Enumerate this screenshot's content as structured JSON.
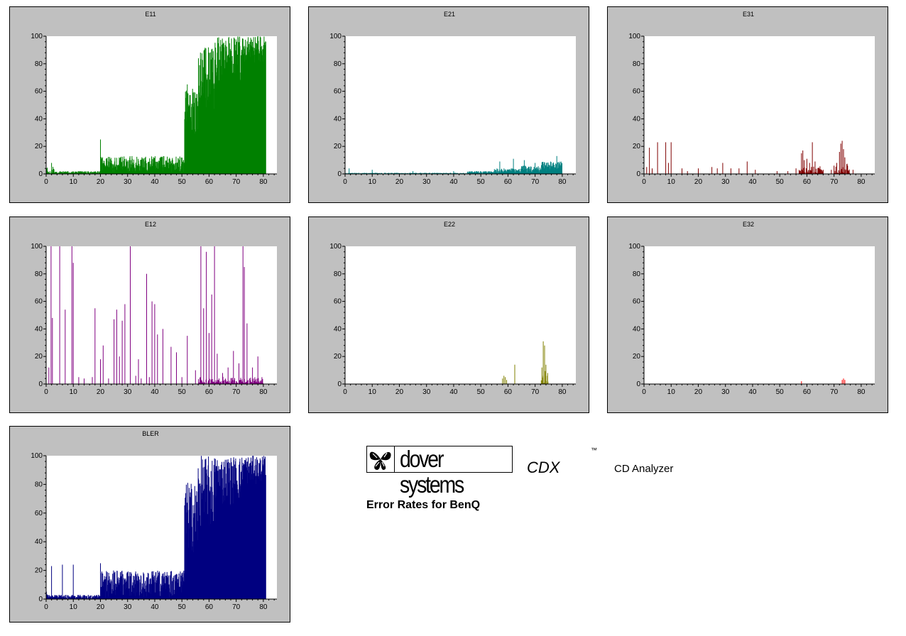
{
  "charts": [
    {
      "id": "e11",
      "title": "E11",
      "color": "#008000",
      "kind": "dense",
      "segments": [
        [
          0,
          0.5,
          0,
          5
        ],
        [
          0.5,
          2.3,
          0,
          2
        ],
        [
          2.3,
          3,
          0,
          6
        ],
        [
          3,
          20,
          0,
          2
        ],
        [
          20,
          51,
          1,
          13
        ],
        [
          51,
          56,
          28,
          62
        ],
        [
          56,
          62,
          45,
          92
        ],
        [
          62,
          72,
          65,
          100
        ],
        [
          72,
          81,
          80,
          100
        ]
      ],
      "spikes": [
        [
          2,
          8
        ],
        [
          20,
          25
        ],
        [
          52,
          65
        ],
        [
          58,
          12
        ],
        [
          60,
          88
        ],
        [
          62,
          15
        ],
        [
          66,
          26
        ],
        [
          68,
          40
        ],
        [
          70,
          15
        ],
        [
          72,
          20
        ],
        [
          78,
          100
        ],
        [
          80,
          78
        ]
      ]
    },
    {
      "id": "e21",
      "title": "E21",
      "color": "#008080",
      "kind": "dense",
      "segments": [
        [
          0,
          45,
          0,
          0.8
        ],
        [
          45,
          55,
          0,
          2
        ],
        [
          55,
          65,
          0,
          4
        ],
        [
          65,
          72,
          1,
          6
        ],
        [
          72,
          80,
          2,
          9
        ]
      ],
      "spikes": [
        [
          1.5,
          4
        ],
        [
          10,
          3
        ],
        [
          25,
          2
        ],
        [
          40,
          2
        ],
        [
          57,
          9
        ],
        [
          62,
          11
        ],
        [
          66,
          10
        ],
        [
          70,
          8
        ],
        [
          78,
          13
        ]
      ]
    },
    {
      "id": "e31",
      "title": "E31",
      "color": "#800000",
      "kind": "sparse",
      "spikes": [
        [
          1,
          5
        ],
        [
          2,
          19
        ],
        [
          3,
          4
        ],
        [
          5,
          23
        ],
        [
          8,
          23
        ],
        [
          9,
          8
        ],
        [
          10,
          23
        ],
        [
          14,
          4
        ],
        [
          16,
          2
        ],
        [
          20,
          4
        ],
        [
          25,
          5
        ],
        [
          27,
          4
        ],
        [
          29,
          8
        ],
        [
          32,
          4
        ],
        [
          35,
          4
        ],
        [
          38,
          9
        ],
        [
          41,
          3
        ],
        [
          49,
          2
        ],
        [
          53,
          2
        ],
        [
          56,
          4
        ],
        [
          58,
          15
        ],
        [
          58.5,
          17
        ],
        [
          59,
          10
        ],
        [
          60,
          11
        ],
        [
          61,
          8
        ],
        [
          62,
          23
        ],
        [
          63,
          9
        ],
        [
          64,
          4
        ],
        [
          66,
          3
        ],
        [
          69,
          3
        ],
        [
          70,
          6
        ],
        [
          71,
          8
        ],
        [
          72,
          16
        ],
        [
          72.5,
          22
        ],
        [
          73,
          24
        ],
        [
          73.5,
          18
        ],
        [
          74,
          12
        ],
        [
          75,
          6
        ],
        [
          77,
          3
        ]
      ],
      "base": [
        [
          57,
          66,
          0,
          7
        ],
        [
          70,
          76,
          0,
          9
        ]
      ]
    },
    {
      "id": "e12",
      "title": "E12",
      "color": "#800080",
      "kind": "sparse",
      "spikes": [
        [
          1,
          12
        ],
        [
          1.8,
          100
        ],
        [
          2.3,
          48
        ],
        [
          5,
          100
        ],
        [
          7,
          54
        ],
        [
          9.5,
          100
        ],
        [
          10,
          88
        ],
        [
          12,
          5
        ],
        [
          14,
          4
        ],
        [
          17,
          5
        ],
        [
          18,
          55
        ],
        [
          20,
          18
        ],
        [
          21,
          28
        ],
        [
          23,
          4
        ],
        [
          25,
          47
        ],
        [
          26,
          54
        ],
        [
          27,
          20
        ],
        [
          28,
          46
        ],
        [
          29,
          58
        ],
        [
          31,
          100
        ],
        [
          33,
          6
        ],
        [
          34,
          18
        ],
        [
          35,
          4
        ],
        [
          37,
          80
        ],
        [
          38,
          5
        ],
        [
          39,
          60
        ],
        [
          40,
          58
        ],
        [
          41,
          36
        ],
        [
          43,
          40
        ],
        [
          46,
          27
        ],
        [
          48,
          23
        ],
        [
          50,
          5
        ],
        [
          52,
          35
        ],
        [
          55,
          10
        ],
        [
          57,
          100
        ],
        [
          58,
          55
        ],
        [
          59,
          96
        ],
        [
          60,
          37
        ],
        [
          61,
          65
        ],
        [
          62,
          100
        ],
        [
          63,
          22
        ],
        [
          65,
          8
        ],
        [
          67,
          12
        ],
        [
          69,
          24
        ],
        [
          71,
          15
        ],
        [
          72.5,
          100
        ],
        [
          73,
          85
        ],
        [
          74,
          44
        ],
        [
          76,
          12
        ],
        [
          78,
          20
        ]
      ],
      "base": [
        [
          56,
          80,
          0,
          6
        ]
      ]
    },
    {
      "id": "e22",
      "title": "E22",
      "color": "#808000",
      "kind": "sparse",
      "spikes": [
        [
          58,
          4
        ],
        [
          58.5,
          6
        ],
        [
          59,
          5
        ],
        [
          59.5,
          3
        ],
        [
          62.5,
          14
        ],
        [
          72.5,
          12
        ],
        [
          73,
          31
        ],
        [
          73.5,
          28
        ],
        [
          74,
          14
        ],
        [
          74.5,
          6
        ]
      ],
      "base": [
        [
          72,
          75,
          0,
          10
        ]
      ]
    },
    {
      "id": "e32",
      "title": "E32",
      "color": "#ff0000",
      "kind": "sparse",
      "spikes": [
        [
          58,
          2
        ],
        [
          73,
          3
        ],
        [
          73.5,
          4
        ],
        [
          74,
          3
        ]
      ],
      "base": []
    },
    {
      "id": "bler",
      "title": "BLER",
      "color": "#000080",
      "kind": "dense",
      "segments": [
        [
          0,
          0.5,
          0,
          10
        ],
        [
          0.5,
          2,
          0,
          3
        ],
        [
          2,
          20,
          0,
          3
        ],
        [
          20,
          51,
          1,
          20
        ],
        [
          51,
          56,
          32,
          82
        ],
        [
          56,
          62,
          45,
          100
        ],
        [
          62,
          72,
          65,
          100
        ],
        [
          72,
          81,
          80,
          100
        ]
      ],
      "spikes": [
        [
          2,
          23
        ],
        [
          6,
          24
        ],
        [
          10,
          24
        ],
        [
          20,
          25
        ],
        [
          52,
          45
        ],
        [
          53,
          28
        ],
        [
          58,
          6
        ],
        [
          60,
          85
        ],
        [
          66,
          28
        ],
        [
          68,
          45
        ],
        [
          70,
          15
        ],
        [
          72,
          35
        ],
        [
          80,
          78
        ]
      ]
    }
  ],
  "chart_data": [
    {
      "type": "bar",
      "title": "E11",
      "x": [
        0,
        5,
        10,
        15,
        20,
        25,
        30,
        35,
        40,
        45,
        50,
        55,
        60,
        65,
        70,
        75,
        80
      ],
      "y": [
        2,
        1,
        1,
        1,
        8,
        8,
        8,
        8,
        10,
        10,
        12,
        55,
        75,
        88,
        95,
        97,
        98
      ],
      "xlim": [
        0,
        85
      ],
      "ylim": [
        0,
        100
      ],
      "xticks": [
        0,
        10,
        20,
        30,
        40,
        50,
        60,
        70,
        80
      ],
      "yticks": [
        0,
        20,
        40,
        60,
        80,
        100
      ]
    },
    {
      "type": "bar",
      "title": "E21",
      "x": [
        0,
        5,
        10,
        15,
        20,
        25,
        30,
        35,
        40,
        45,
        50,
        55,
        60,
        65,
        70,
        75,
        80
      ],
      "y": [
        0,
        0,
        0,
        0,
        0,
        0,
        0,
        0,
        0,
        0,
        1,
        2,
        2,
        3,
        4,
        5,
        6
      ],
      "xlim": [
        0,
        85
      ],
      "ylim": [
        0,
        100
      ],
      "xticks": [
        0,
        10,
        20,
        30,
        40,
        50,
        60,
        70,
        80
      ],
      "yticks": [
        0,
        20,
        40,
        60,
        80,
        100
      ]
    },
    {
      "type": "bar",
      "title": "E31",
      "x": [
        2,
        5,
        8,
        10,
        29,
        38,
        58,
        62,
        73
      ],
      "y": [
        19,
        23,
        23,
        23,
        8,
        9,
        17,
        23,
        24
      ],
      "xlim": [
        0,
        85
      ],
      "ylim": [
        0,
        100
      ],
      "xticks": [
        0,
        10,
        20,
        30,
        40,
        50,
        60,
        70,
        80
      ],
      "yticks": [
        0,
        20,
        40,
        60,
        80,
        100
      ]
    },
    {
      "type": "bar",
      "title": "E12",
      "x": [
        2,
        5,
        9.5,
        31,
        57,
        62,
        72.5
      ],
      "y": [
        100,
        100,
        100,
        100,
        100,
        100,
        100
      ],
      "xlim": [
        0,
        85
      ],
      "ylim": [
        0,
        100
      ],
      "xticks": [
        0,
        10,
        20,
        30,
        40,
        50,
        60,
        70,
        80
      ],
      "yticks": [
        0,
        20,
        40,
        60,
        80,
        100
      ]
    },
    {
      "type": "bar",
      "title": "E22",
      "x": [
        58.5,
        62.5,
        73,
        73.5
      ],
      "y": [
        6,
        14,
        31,
        28
      ],
      "xlim": [
        0,
        85
      ],
      "ylim": [
        0,
        100
      ],
      "xticks": [
        0,
        10,
        20,
        30,
        40,
        50,
        60,
        70,
        80
      ],
      "yticks": [
        0,
        20,
        40,
        60,
        80,
        100
      ]
    },
    {
      "type": "bar",
      "title": "E32",
      "x": [
        58,
        73.5
      ],
      "y": [
        2,
        4
      ],
      "xlim": [
        0,
        85
      ],
      "ylim": [
        0,
        100
      ],
      "xticks": [
        0,
        10,
        20,
        30,
        40,
        50,
        60,
        70,
        80
      ],
      "yticks": [
        0,
        20,
        40,
        60,
        80,
        100
      ]
    },
    {
      "type": "bar",
      "title": "BLER",
      "x": [
        0,
        5,
        10,
        15,
        20,
        25,
        30,
        35,
        40,
        45,
        50,
        55,
        60,
        65,
        70,
        75,
        80
      ],
      "y": [
        3,
        2,
        2,
        2,
        10,
        10,
        10,
        10,
        12,
        12,
        14,
        58,
        78,
        90,
        96,
        98,
        98
      ],
      "xlim": [
        0,
        85
      ],
      "ylim": [
        0,
        100
      ],
      "xticks": [
        0,
        10,
        20,
        30,
        40,
        50,
        60,
        70,
        80
      ],
      "yticks": [
        0,
        20,
        40,
        60,
        80,
        100
      ]
    }
  ],
  "axis": {
    "xmax": 85,
    "ymax": 100,
    "xticks": [
      "0",
      "10",
      "20",
      "30",
      "40",
      "50",
      "60",
      "70",
      "80"
    ],
    "yticks": [
      "0",
      "20",
      "40",
      "60",
      "80",
      "100"
    ]
  },
  "branding": {
    "company": "dover systems",
    "product": "CDX",
    "trademark": "™",
    "tagline": "CD Analyzer",
    "report_title": "Error Rates for BenQ"
  }
}
